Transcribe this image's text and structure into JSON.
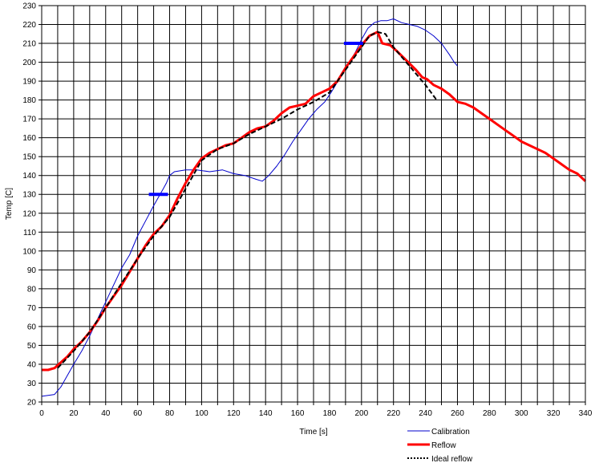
{
  "chart_data": {
    "type": "line",
    "title": "",
    "xlabel": "Time [s]",
    "ylabel": "Temp [C]",
    "xlim": [
      0,
      340
    ],
    "ylim": [
      20,
      230
    ],
    "x_tick_step": 10,
    "x_label_step": 20,
    "y_tick_step": 10,
    "grid": true,
    "legend_position": "bottom-right",
    "series": [
      {
        "name": "Calibration",
        "color": "#0000cc",
        "style": "thin",
        "points": [
          [
            0,
            23
          ],
          [
            8,
            24
          ],
          [
            12,
            28
          ],
          [
            16,
            34
          ],
          [
            20,
            40
          ],
          [
            25,
            47
          ],
          [
            30,
            55
          ],
          [
            35,
            64
          ],
          [
            40,
            73
          ],
          [
            45,
            82
          ],
          [
            50,
            91
          ],
          [
            55,
            98
          ],
          [
            60,
            108
          ],
          [
            65,
            116
          ],
          [
            70,
            124
          ],
          [
            74,
            130
          ],
          [
            76,
            133
          ],
          [
            78,
            136
          ],
          [
            80,
            140
          ],
          [
            83,
            142
          ],
          [
            90,
            143
          ],
          [
            97,
            143
          ],
          [
            105,
            142
          ],
          [
            113,
            143
          ],
          [
            120,
            141
          ],
          [
            127,
            140
          ],
          [
            134,
            138
          ],
          [
            138,
            137
          ],
          [
            142,
            140
          ],
          [
            147,
            145
          ],
          [
            152,
            151
          ],
          [
            157,
            158
          ],
          [
            162,
            164
          ],
          [
            167,
            170
          ],
          [
            172,
            175
          ],
          [
            177,
            179
          ],
          [
            181,
            184
          ],
          [
            186,
            191
          ],
          [
            191,
            198
          ],
          [
            196,
            205
          ],
          [
            200,
            212
          ],
          [
            204,
            218
          ],
          [
            208,
            221
          ],
          [
            212,
            222
          ],
          [
            216,
            222
          ],
          [
            220,
            223
          ],
          [
            225,
            221
          ],
          [
            230,
            220
          ],
          [
            235,
            219
          ],
          [
            240,
            217
          ],
          [
            245,
            214
          ],
          [
            250,
            210
          ],
          [
            255,
            204
          ],
          [
            258,
            200
          ],
          [
            260,
            198
          ]
        ]
      },
      {
        "name": "Reflow",
        "color": "#ff0000",
        "style": "thick",
        "points": [
          [
            0,
            37
          ],
          [
            4,
            37
          ],
          [
            8,
            38
          ],
          [
            12,
            41
          ],
          [
            16,
            44
          ],
          [
            20,
            48
          ],
          [
            25,
            52
          ],
          [
            30,
            57
          ],
          [
            35,
            63
          ],
          [
            40,
            70
          ],
          [
            45,
            76
          ],
          [
            50,
            82
          ],
          [
            55,
            89
          ],
          [
            60,
            96
          ],
          [
            65,
            103
          ],
          [
            70,
            109
          ],
          [
            75,
            113
          ],
          [
            80,
            119
          ],
          [
            85,
            128
          ],
          [
            90,
            136
          ],
          [
            95,
            143
          ],
          [
            100,
            149
          ],
          [
            105,
            152
          ],
          [
            110,
            154
          ],
          [
            115,
            156
          ],
          [
            120,
            157
          ],
          [
            125,
            160
          ],
          [
            130,
            163
          ],
          [
            135,
            165
          ],
          [
            140,
            166
          ],
          [
            145,
            169
          ],
          [
            150,
            173
          ],
          [
            155,
            176
          ],
          [
            160,
            177
          ],
          [
            165,
            178
          ],
          [
            170,
            182
          ],
          [
            175,
            184
          ],
          [
            180,
            186
          ],
          [
            185,
            190
          ],
          [
            190,
            197
          ],
          [
            195,
            203
          ],
          [
            200,
            209
          ],
          [
            205,
            214
          ],
          [
            210,
            216
          ],
          [
            213,
            210
          ],
          [
            218,
            209
          ],
          [
            222,
            206
          ],
          [
            228,
            201
          ],
          [
            234,
            196
          ],
          [
            238,
            192
          ],
          [
            241,
            191
          ],
          [
            245,
            188
          ],
          [
            250,
            186
          ],
          [
            255,
            183
          ],
          [
            260,
            179
          ],
          [
            265,
            178
          ],
          [
            270,
            176
          ],
          [
            275,
            173
          ],
          [
            280,
            170
          ],
          [
            285,
            167
          ],
          [
            290,
            164
          ],
          [
            295,
            161
          ],
          [
            300,
            158
          ],
          [
            305,
            156
          ],
          [
            310,
            154
          ],
          [
            315,
            152
          ],
          [
            320,
            149
          ],
          [
            325,
            146
          ],
          [
            330,
            143
          ],
          [
            335,
            141
          ],
          [
            340,
            137
          ]
        ]
      },
      {
        "name": "Ideal reflow",
        "color": "#000000",
        "style": "dashed",
        "points": [
          [
            10,
            38
          ],
          [
            20,
            47
          ],
          [
            30,
            57
          ],
          [
            40,
            70
          ],
          [
            50,
            83
          ],
          [
            60,
            96
          ],
          [
            70,
            108
          ],
          [
            80,
            118
          ],
          [
            90,
            133
          ],
          [
            100,
            148
          ],
          [
            110,
            154
          ],
          [
            120,
            157
          ],
          [
            130,
            162
          ],
          [
            140,
            166
          ],
          [
            150,
            170
          ],
          [
            160,
            175
          ],
          [
            170,
            179
          ],
          [
            180,
            184
          ],
          [
            190,
            196
          ],
          [
            200,
            208
          ],
          [
            205,
            214
          ],
          [
            210,
            216
          ],
          [
            215,
            215
          ],
          [
            220,
            208
          ],
          [
            230,
            198
          ],
          [
            240,
            188
          ],
          [
            247,
            180
          ]
        ]
      }
    ],
    "markers": [
      {
        "color": "#0000ff",
        "y": 130,
        "x_from": 67,
        "x_to": 79
      },
      {
        "color": "#0000ff",
        "y": 210,
        "x_from": 189,
        "x_to": 201
      }
    ]
  }
}
